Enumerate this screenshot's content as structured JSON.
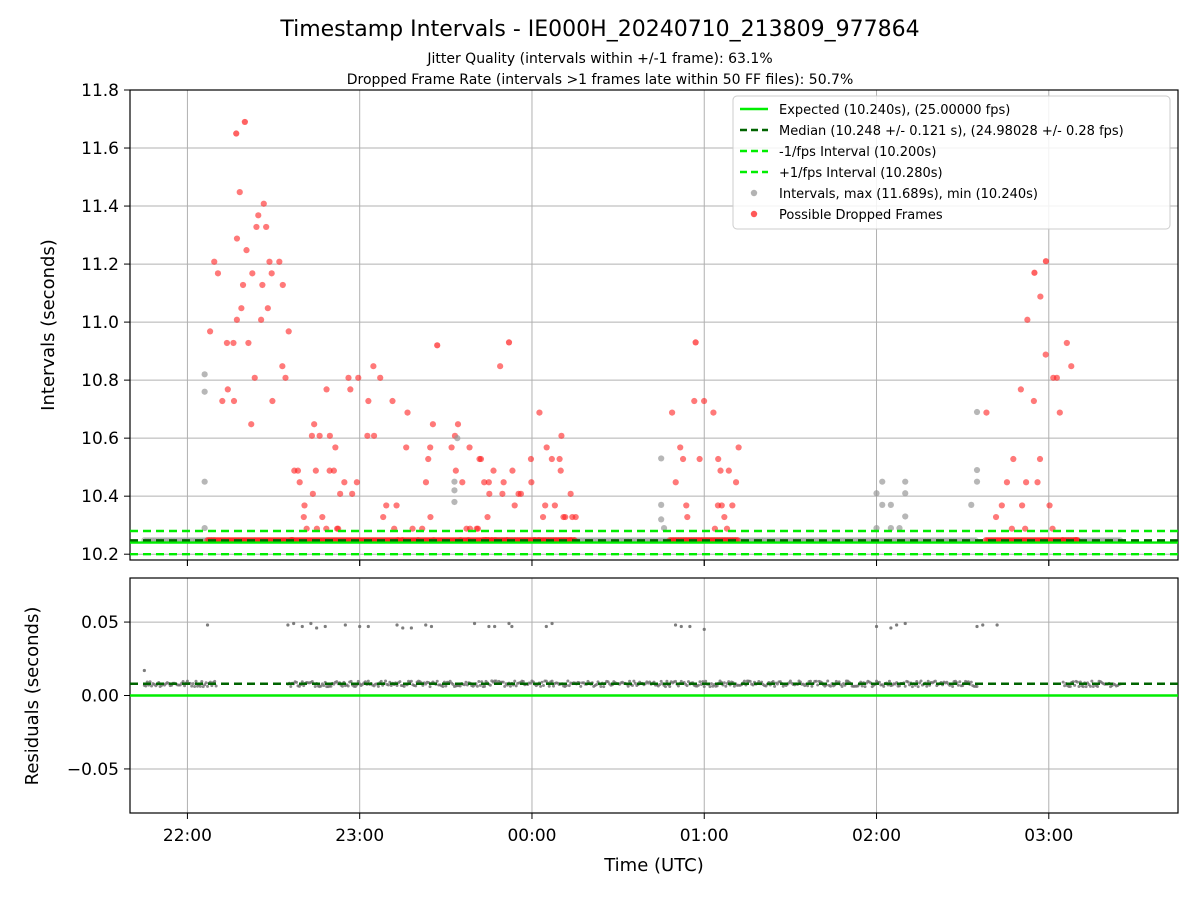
{
  "figure": {
    "title": "Timestamp Intervals - IE000H_20240710_213809_977864",
    "subtitle_1": "Jitter Quality (intervals within +/-1 frame): 63.1%",
    "subtitle_2": "Dropped Frame Rate (intervals >1 frames late within 50 FF files): 50.7%",
    "xlabel": "Time (UTC)"
  },
  "colors": {
    "expected": "#00ee00",
    "median": "#006400",
    "interval_band": "#00ee00",
    "intervals": "#999999",
    "dropped": "#ff2020",
    "residuals": "#6f6f6f"
  },
  "chart_data": [
    {
      "type": "scatter",
      "name": "intervals_panel",
      "xlabel": "Time (UTC)",
      "ylabel": "Intervals (seconds)",
      "xlim": [
        "21:40",
        "03:45"
      ],
      "ylim": [
        10.18,
        11.8
      ],
      "xticks": [
        "22:00",
        "23:00",
        "00:00",
        "01:00",
        "02:00",
        "03:00"
      ],
      "yticks": [
        "10.2",
        "10.4",
        "10.6",
        "10.8",
        "11.0",
        "11.2",
        "11.4",
        "11.6",
        "11.8"
      ],
      "grid": true,
      "legend_position": "top-right",
      "reference_lines": [
        {
          "name": "Expected (10.240s), (25.00000 fps)",
          "y": 10.24,
          "style": "solid"
        },
        {
          "name": "Median (10.248 +/- 0.121 s), (24.98028 +/- 0.28 fps)",
          "y": 10.248,
          "style": "dashed"
        },
        {
          "name": "-1/fps Interval (10.200s)",
          "y": 10.2,
          "style": "dashed"
        },
        {
          "name": "+1/fps Interval (10.280s)",
          "y": 10.28,
          "style": "dashed"
        }
      ],
      "series": [
        {
          "name": "Intervals, max (11.689s), min (10.240s)",
          "kind": "scatter",
          "baseline_segments": [
            [
              "21:45",
              "22:10"
            ],
            [
              "23:45",
              "00:15"
            ],
            [
              "00:15",
              "02:35"
            ],
            [
              "03:05",
              "03:25"
            ]
          ],
          "baseline_y": 10.248,
          "points": [
            [
              "22:06",
              10.29
            ],
            [
              "22:06",
              10.45
            ],
            [
              "22:06",
              10.76
            ],
            [
              "22:06",
              10.82
            ],
            [
              "23:33",
              10.38
            ],
            [
              "23:33",
              10.42
            ],
            [
              "23:33",
              10.45
            ],
            [
              "23:34",
              10.6
            ],
            [
              "00:45",
              10.32
            ],
            [
              "00:45",
              10.37
            ],
            [
              "00:45",
              10.53
            ],
            [
              "00:46",
              10.29
            ],
            [
              "02:00",
              10.29
            ],
            [
              "02:00",
              10.41
            ],
            [
              "02:02",
              10.37
            ],
            [
              "02:02",
              10.45
            ],
            [
              "02:05",
              10.29
            ],
            [
              "02:05",
              10.37
            ],
            [
              "02:08",
              10.29
            ],
            [
              "02:10",
              10.33
            ],
            [
              "02:10",
              10.41
            ],
            [
              "02:10",
              10.45
            ],
            [
              "02:33",
              10.37
            ],
            [
              "02:35",
              10.45
            ],
            [
              "02:35",
              10.49
            ],
            [
              "02:35",
              10.69
            ]
          ]
        },
        {
          "name": "Possible Dropped Frames",
          "kind": "scatter",
          "clusters": [
            {
              "t_start": "22:07",
              "t_end": "22:37",
              "y_min": 10.64,
              "y_max": 11.69,
              "peak_at": "22:20"
            },
            {
              "t_start": "22:36",
              "t_end": "23:45",
              "y_min": 10.25,
              "y_max": 10.93,
              "peak_at": "23:05"
            },
            {
              "t_start": "23:43",
              "t_end": "00:15",
              "y_min": 10.25,
              "y_max": 10.93,
              "peak_at": "23:52"
            },
            {
              "t_start": "00:48",
              "t_end": "01:12",
              "y_min": 10.25,
              "y_max": 10.93,
              "peak_at": "00:55"
            },
            {
              "t_start": "02:38",
              "t_end": "03:10",
              "y_min": 10.25,
              "y_max": 11.21,
              "peak_at": "02:58"
            }
          ],
          "extreme_points": [
            [
              "22:17",
              11.65
            ],
            [
              "22:20",
              11.69
            ],
            [
              "02:59",
              11.21
            ],
            [
              "02:55",
              11.17
            ],
            [
              "23:52",
              10.93
            ],
            [
              "00:57",
              10.93
            ],
            [
              "23:27",
              10.92
            ]
          ]
        }
      ]
    },
    {
      "type": "scatter",
      "name": "residuals_panel",
      "xlabel": "Time (UTC)",
      "ylabel": "Residuals (seconds)",
      "xlim": [
        "21:40",
        "03:45"
      ],
      "ylim": [
        -0.08,
        0.08
      ],
      "xticks": [
        "22:00",
        "23:00",
        "00:00",
        "01:00",
        "02:00",
        "03:00"
      ],
      "yticks": [
        "0.05",
        "0.00",
        "−0.05"
      ],
      "grid": true,
      "reference_lines": [
        {
          "name": "Expected",
          "y": 0.0,
          "style": "solid"
        },
        {
          "name": "Median",
          "y": 0.008,
          "style": "dashed"
        }
      ],
      "series": [
        {
          "name": "Residuals",
          "kind": "scatter",
          "band_segments": [
            [
              "21:45",
              "22:10"
            ],
            [
              "22:35",
              "02:35"
            ],
            [
              "03:05",
              "03:25"
            ]
          ],
          "band_y": 0.008,
          "points": [
            [
              "21:45",
              0.017
            ],
            [
              "22:07",
              0.048
            ],
            [
              "22:35",
              0.048
            ],
            [
              "22:37",
              0.049
            ],
            [
              "22:40",
              0.047
            ],
            [
              "22:43",
              0.049
            ],
            [
              "22:45",
              0.046
            ],
            [
              "22:48",
              0.047
            ],
            [
              "22:55",
              0.048
            ],
            [
              "23:00",
              0.047
            ],
            [
              "23:03",
              0.047
            ],
            [
              "23:13",
              0.048
            ],
            [
              "23:15",
              0.046
            ],
            [
              "23:18",
              0.046
            ],
            [
              "23:23",
              0.048
            ],
            [
              "23:25",
              0.047
            ],
            [
              "23:40",
              0.049
            ],
            [
              "23:45",
              0.047
            ],
            [
              "23:47",
              0.047
            ],
            [
              "23:52",
              0.049
            ],
            [
              "23:53",
              0.047
            ],
            [
              "00:05",
              0.047
            ],
            [
              "00:07",
              0.049
            ],
            [
              "00:50",
              0.048
            ],
            [
              "00:52",
              0.047
            ],
            [
              "00:55",
              0.047
            ],
            [
              "01:00",
              0.045
            ],
            [
              "02:00",
              0.047
            ],
            [
              "02:05",
              0.046
            ],
            [
              "02:07",
              0.048
            ],
            [
              "02:10",
              0.049
            ],
            [
              "02:35",
              0.047
            ],
            [
              "02:37",
              0.048
            ],
            [
              "02:42",
              0.048
            ]
          ]
        }
      ]
    }
  ]
}
